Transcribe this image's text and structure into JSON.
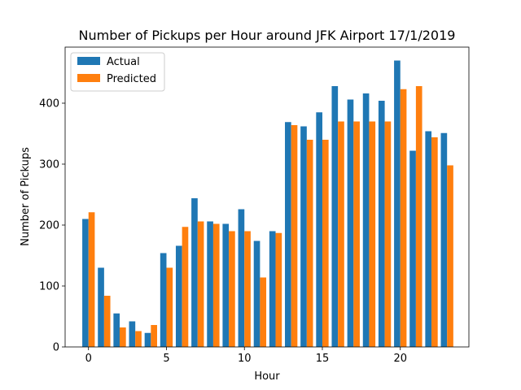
{
  "chart_data": {
    "type": "bar",
    "title": "Number of Pickups per Hour around JFK Airport 17/1/2019",
    "xlabel": "Hour",
    "ylabel": "Number of Pickups",
    "x": [
      0,
      1,
      2,
      3,
      4,
      5,
      6,
      7,
      8,
      9,
      10,
      11,
      12,
      13,
      14,
      15,
      16,
      17,
      18,
      19,
      20,
      21,
      22,
      23
    ],
    "xlim": [
      -1.5,
      24.4
    ],
    "ylim": [
      0,
      492
    ],
    "xticks": [
      0,
      5,
      10,
      15,
      20
    ],
    "xtick_labels": [
      "0",
      "5",
      "10",
      "15",
      "20"
    ],
    "yticks": [
      0,
      100,
      200,
      300,
      400
    ],
    "ytick_labels": [
      "0",
      "100",
      "200",
      "300",
      "400"
    ],
    "grid": false,
    "legend_position": "upper left",
    "series": [
      {
        "name": "Actual",
        "color": "#1f77b4",
        "values": [
          210,
          130,
          55,
          42,
          23,
          154,
          166,
          244,
          206,
          202,
          226,
          174,
          190,
          369,
          362,
          385,
          428,
          406,
          416,
          404,
          470,
          322,
          354,
          351
        ]
      },
      {
        "name": "Predicted",
        "color": "#ff7f0e",
        "values": [
          221,
          84,
          32,
          26,
          36,
          130,
          197,
          206,
          202,
          190,
          190,
          114,
          187,
          364,
          340,
          340,
          370,
          370,
          370,
          370,
          423,
          428,
          344,
          298
        ]
      }
    ]
  }
}
